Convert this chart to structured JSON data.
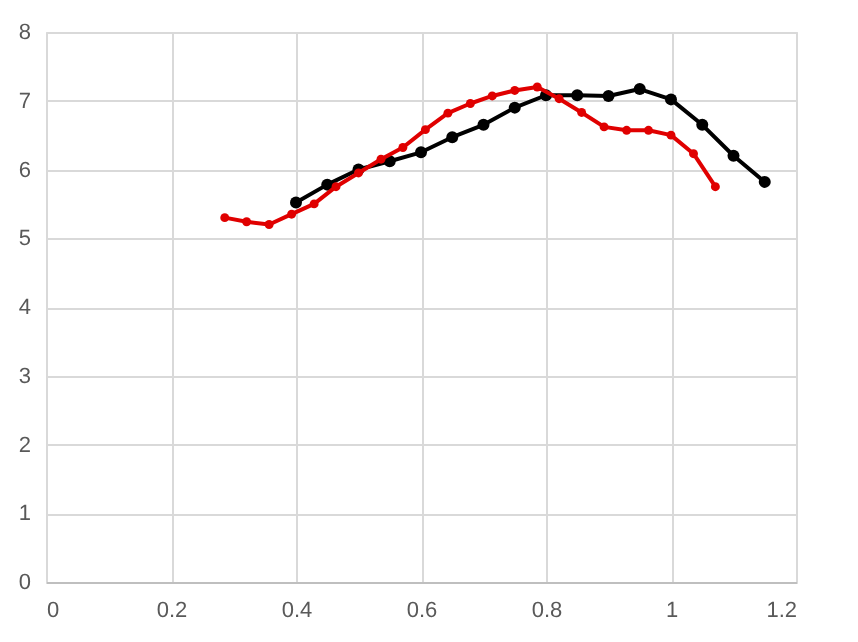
{
  "chart_data": {
    "type": "line",
    "xlim": [
      0,
      1.2
    ],
    "xticks": [
      0,
      0.2,
      0.4,
      0.6,
      0.8,
      1,
      1.2
    ],
    "ylim": [
      0,
      8
    ],
    "yticks": [
      0,
      1,
      2,
      3,
      4,
      5,
      6,
      7,
      8
    ],
    "grid": true,
    "marker": "circle",
    "line_style": "solid",
    "series": [
      {
        "color": "#000000",
        "x": [
          0.4,
          0.45,
          0.5,
          0.55,
          0.6,
          0.65,
          0.7,
          0.75,
          0.8,
          0.85,
          0.9,
          0.95,
          1.0,
          1.05,
          1.1,
          1.15
        ],
        "values": [
          5.52,
          5.78,
          6.0,
          6.12,
          6.25,
          6.47,
          6.65,
          6.9,
          7.08,
          7.08,
          7.07,
          7.17,
          7.02,
          6.65,
          6.2,
          5.82
        ]
      },
      {
        "color": "#e00000",
        "x": [
          0.286,
          0.321,
          0.357,
          0.393,
          0.429,
          0.464,
          0.5,
          0.536,
          0.571,
          0.607,
          0.643,
          0.679,
          0.714,
          0.75,
          0.786,
          0.821,
          0.857,
          0.893,
          0.929,
          0.964,
          1.0,
          1.036,
          1.071
        ],
        "values": [
          5.3,
          5.24,
          5.2,
          5.35,
          5.5,
          5.75,
          5.95,
          6.15,
          6.32,
          6.58,
          6.82,
          6.96,
          7.07,
          7.15,
          7.2,
          7.03,
          6.83,
          6.62,
          6.57,
          6.57,
          6.5,
          6.23,
          5.75
        ]
      }
    ]
  }
}
